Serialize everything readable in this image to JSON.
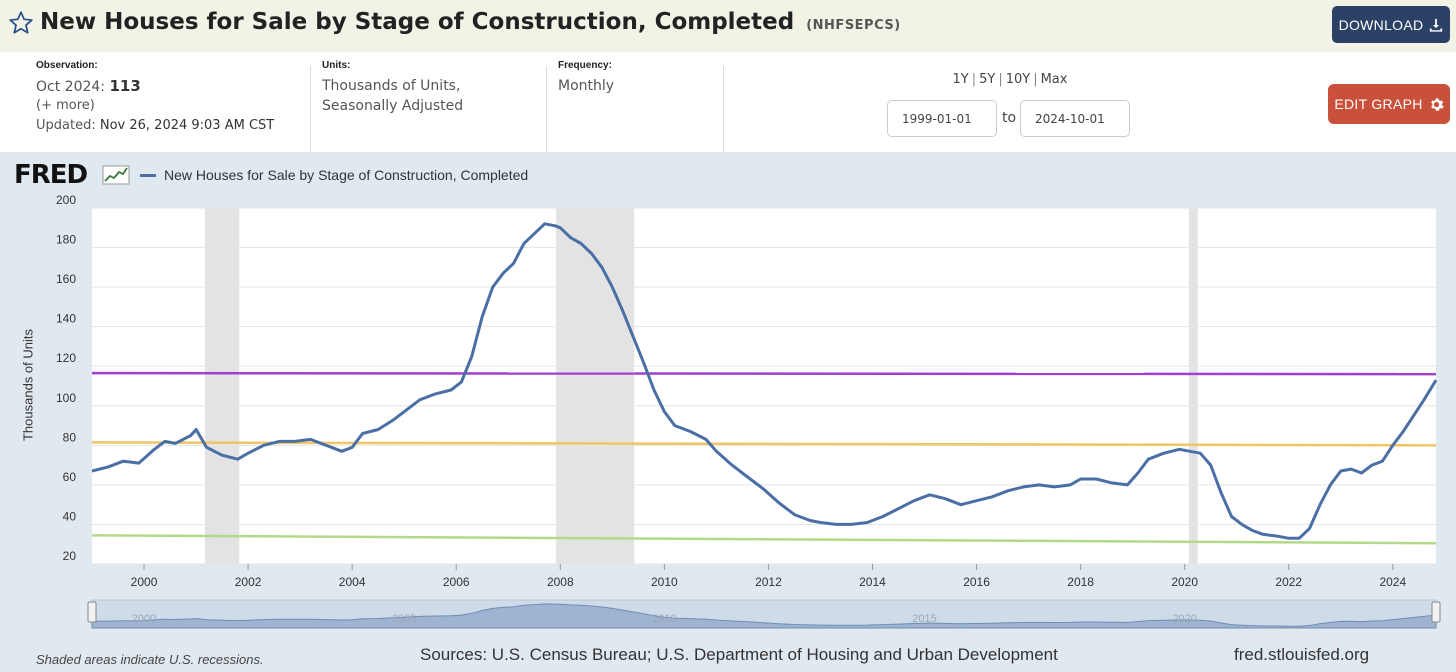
{
  "header": {
    "title": "New Houses for Sale by Stage of Construction, Completed",
    "series_code": "(NHFSEPCS)",
    "download_label": "DOWNLOAD",
    "star_icon": "star-icon",
    "download_icon": "download-icon"
  },
  "meta": {
    "observation_label": "Observation:",
    "observation_period": "Oct 2024:",
    "observation_value": "113",
    "observation_more": "(+ more)",
    "updated_label": "Updated:",
    "updated_value": "Nov 26, 2024 9:03 AM CST",
    "units_label": "Units:",
    "units_line1": "Thousands of Units,",
    "units_line2": "Seasonally Adjusted",
    "frequency_label": "Frequency:",
    "frequency_value": "Monthly"
  },
  "range": {
    "links": [
      "1Y",
      "5Y",
      "10Y",
      "Max"
    ],
    "start": "1999-01-01",
    "to_label": "to",
    "end": "2024-10-01"
  },
  "edit_label": "EDIT GRAPH",
  "edit_icon": "gear-icon",
  "footer": {
    "note": "Shaded areas indicate U.S. recessions.",
    "sources": "Sources: U.S. Census Bureau; U.S. Department of Housing and Urban Development",
    "site": "fred.stlouisfed.org"
  },
  "chart_data": {
    "type": "line",
    "logo": "FRED",
    "ylabel": "Thousands of Units",
    "ylim": [
      20,
      200
    ],
    "yticks": [
      20,
      40,
      60,
      80,
      100,
      120,
      140,
      160,
      180,
      200
    ],
    "xlim": [
      1999.0,
      2024.83
    ],
    "xticks": [
      "2000",
      "2002",
      "2004",
      "2006",
      "2008",
      "2010",
      "2012",
      "2014",
      "2016",
      "2018",
      "2020",
      "2022",
      "2024"
    ],
    "recessions": [
      [
        2001.17,
        2001.83
      ],
      [
        2007.92,
        2009.42
      ],
      [
        2020.08,
        2020.25
      ]
    ],
    "series": [
      {
        "name": "New Houses for Sale by Stage of Construction, Completed",
        "color": "#4a6fa5",
        "points": [
          [
            1999.0,
            67
          ],
          [
            1999.3,
            69
          ],
          [
            1999.6,
            72
          ],
          [
            1999.9,
            71
          ],
          [
            2000.2,
            78
          ],
          [
            2000.4,
            82
          ],
          [
            2000.6,
            81
          ],
          [
            2000.9,
            85
          ],
          [
            2001.0,
            88
          ],
          [
            2001.2,
            79
          ],
          [
            2001.5,
            75
          ],
          [
            2001.8,
            73
          ],
          [
            2002.0,
            76
          ],
          [
            2002.3,
            80
          ],
          [
            2002.6,
            82
          ],
          [
            2002.9,
            82
          ],
          [
            2003.2,
            83
          ],
          [
            2003.5,
            80
          ],
          [
            2003.8,
            77
          ],
          [
            2004.0,
            79
          ],
          [
            2004.2,
            86
          ],
          [
            2004.5,
            88
          ],
          [
            2004.8,
            93
          ],
          [
            2005.0,
            97
          ],
          [
            2005.3,
            103
          ],
          [
            2005.6,
            106
          ],
          [
            2005.9,
            108
          ],
          [
            2006.1,
            112
          ],
          [
            2006.3,
            125
          ],
          [
            2006.5,
            145
          ],
          [
            2006.7,
            160
          ],
          [
            2006.9,
            167
          ],
          [
            2007.1,
            172
          ],
          [
            2007.3,
            182
          ],
          [
            2007.5,
            187
          ],
          [
            2007.7,
            192
          ],
          [
            2007.9,
            191
          ],
          [
            2008.0,
            190
          ],
          [
            2008.2,
            185
          ],
          [
            2008.4,
            182
          ],
          [
            2008.6,
            177
          ],
          [
            2008.8,
            170
          ],
          [
            2009.0,
            160
          ],
          [
            2009.2,
            148
          ],
          [
            2009.4,
            135
          ],
          [
            2009.6,
            122
          ],
          [
            2009.8,
            108
          ],
          [
            2010.0,
            97
          ],
          [
            2010.2,
            90
          ],
          [
            2010.5,
            87
          ],
          [
            2010.8,
            83
          ],
          [
            2011.0,
            77
          ],
          [
            2011.3,
            70
          ],
          [
            2011.6,
            64
          ],
          [
            2011.9,
            58
          ],
          [
            2012.2,
            51
          ],
          [
            2012.5,
            45
          ],
          [
            2012.8,
            42
          ],
          [
            2013.0,
            41
          ],
          [
            2013.3,
            40
          ],
          [
            2013.6,
            40
          ],
          [
            2013.9,
            41
          ],
          [
            2014.2,
            44
          ],
          [
            2014.5,
            48
          ],
          [
            2014.8,
            52
          ],
          [
            2015.1,
            55
          ],
          [
            2015.4,
            53
          ],
          [
            2015.7,
            50
          ],
          [
            2016.0,
            52
          ],
          [
            2016.3,
            54
          ],
          [
            2016.6,
            57
          ],
          [
            2016.9,
            59
          ],
          [
            2017.2,
            60
          ],
          [
            2017.5,
            59
          ],
          [
            2017.8,
            60
          ],
          [
            2018.0,
            63
          ],
          [
            2018.3,
            63
          ],
          [
            2018.6,
            61
          ],
          [
            2018.9,
            60
          ],
          [
            2019.1,
            66
          ],
          [
            2019.3,
            73
          ],
          [
            2019.6,
            76
          ],
          [
            2019.9,
            78
          ],
          [
            2020.1,
            77
          ],
          [
            2020.3,
            76
          ],
          [
            2020.5,
            70
          ],
          [
            2020.7,
            56
          ],
          [
            2020.9,
            44
          ],
          [
            2021.1,
            40
          ],
          [
            2021.3,
            37
          ],
          [
            2021.5,
            35
          ],
          [
            2021.8,
            34
          ],
          [
            2022.0,
            33
          ],
          [
            2022.2,
            33
          ],
          [
            2022.4,
            38
          ],
          [
            2022.6,
            50
          ],
          [
            2022.8,
            60
          ],
          [
            2023.0,
            67
          ],
          [
            2023.2,
            68
          ],
          [
            2023.4,
            66
          ],
          [
            2023.6,
            70
          ],
          [
            2023.8,
            72
          ],
          [
            2024.0,
            80
          ],
          [
            2024.2,
            87
          ],
          [
            2024.4,
            95
          ],
          [
            2024.6,
            103
          ],
          [
            2024.83,
            113
          ]
        ]
      }
    ],
    "overlays": [
      {
        "color": "#a23fd0",
        "x": [
          1999.0,
          2024.83
        ],
        "y": [
          116.5,
          116
        ]
      },
      {
        "color": "#f2c464",
        "x": [
          1999.0,
          2024.83
        ],
        "y": [
          81.5,
          80
        ]
      },
      {
        "color": "#b5d98a",
        "x": [
          1999.0,
          2024.83
        ],
        "y": [
          34.5,
          30.5
        ]
      }
    ],
    "navigator": {
      "labels": [
        "2000",
        "2005",
        "2010",
        "2015",
        "2020"
      ],
      "years": [
        2000,
        2005,
        2010,
        2015,
        2020
      ]
    }
  }
}
